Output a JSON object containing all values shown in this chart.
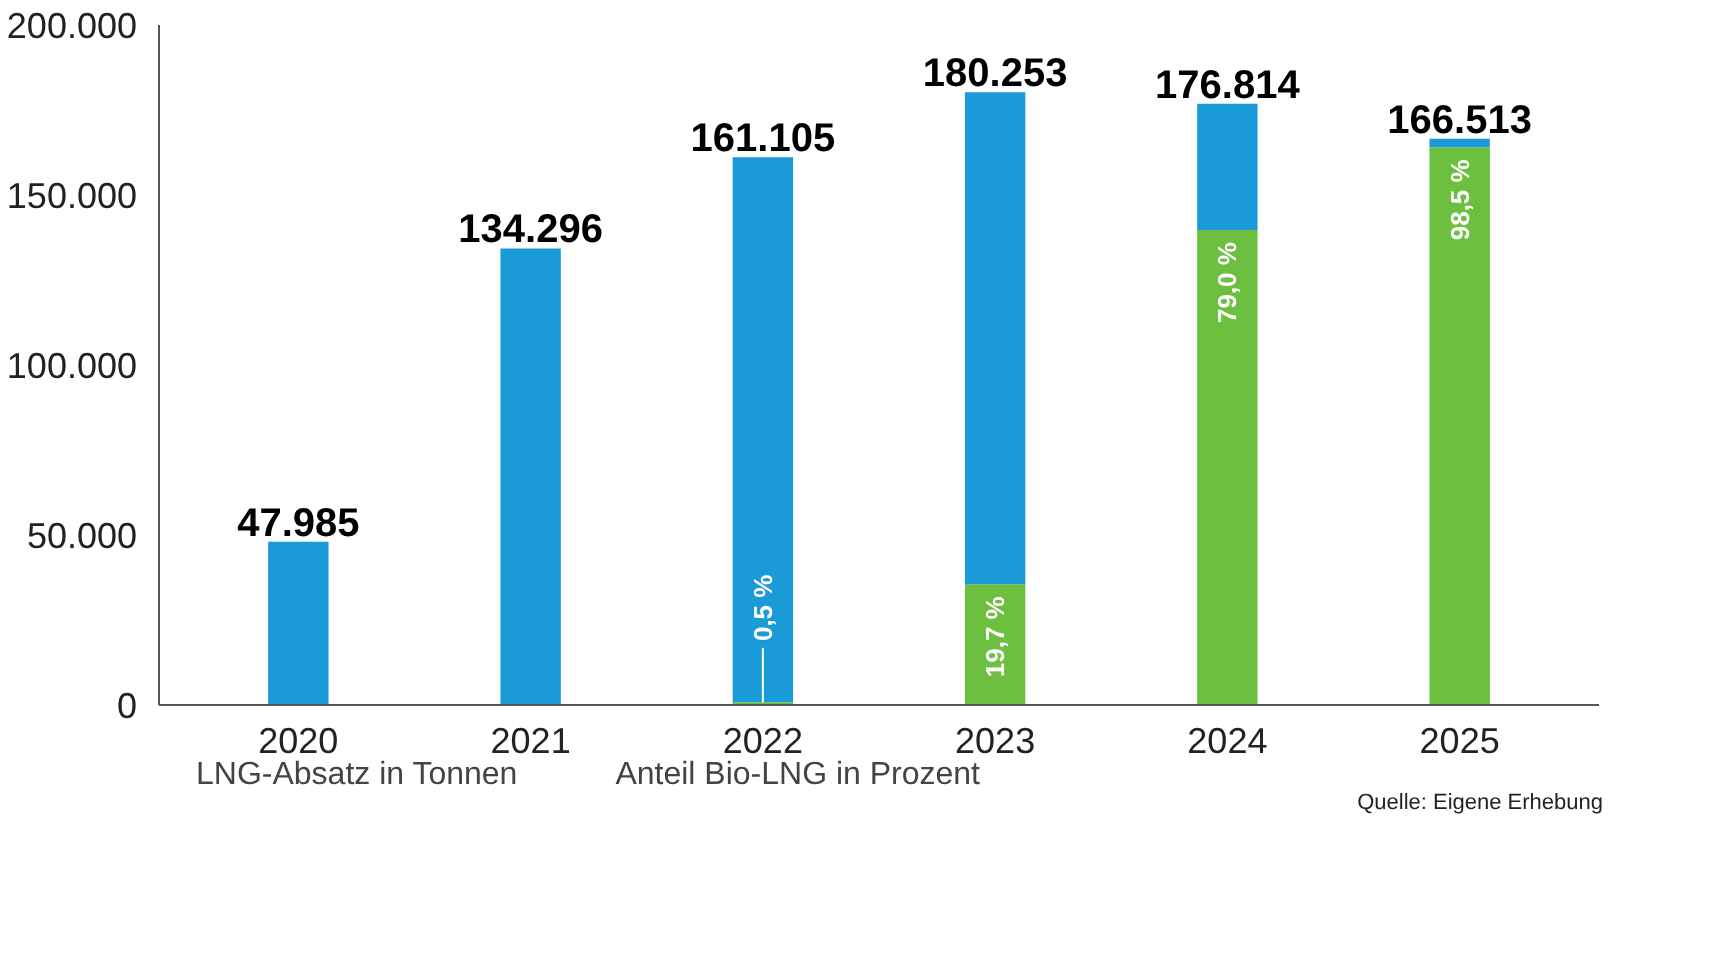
{
  "chart_data": {
    "type": "bar",
    "stacked": true,
    "categories": [
      "2020",
      "2021",
      "2022",
      "2023",
      "2024",
      "2025"
    ],
    "series": [
      {
        "name": "Anteil Bio-LNG in Prozent",
        "color": "#6cbf3f",
        "values": [
          0,
          0,
          805,
          35510,
          139683,
          164015
        ]
      },
      {
        "name": "LNG-Absatz in Tonnen",
        "color": "#1a9ad6",
        "values": [
          47985,
          134296,
          160300,
          144743,
          37131,
          2498
        ]
      }
    ],
    "totals": [
      "47.985",
      "134.296",
      "161.105",
      "180.253",
      "176.814",
      "166.513"
    ],
    "ylim": [
      0,
      200000
    ],
    "yticks": [
      {
        "value": 0,
        "label": "0"
      },
      {
        "value": 50000,
        "label": "50.000"
      },
      {
        "value": 100000,
        "label": "100.000"
      },
      {
        "value": 150000,
        "label": "150.000"
      },
      {
        "value": 200000,
        "label": "200.000"
      }
    ],
    "legend": "bottom left",
    "annotations": [
      {
        "text": "0,5 %",
        "x": "2022",
        "y": 805
      },
      {
        "text": "19,7 %",
        "x": "2023",
        "y": 35510
      },
      {
        "text": "79,0 %",
        "x": "2024",
        "y": 139683
      },
      {
        "text": "98,5 %",
        "x": "2025",
        "y": 164015
      },
      "Quelle: Eigene Erhebung"
    ]
  }
}
